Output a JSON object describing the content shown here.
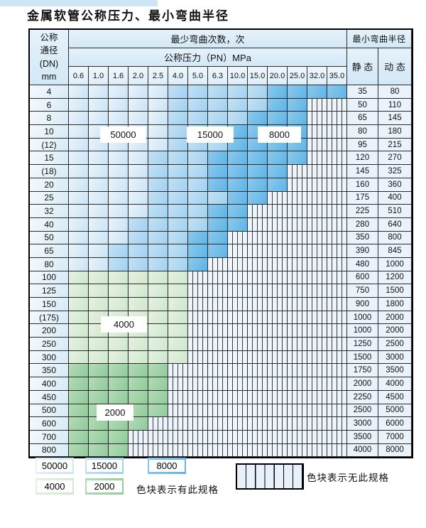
{
  "page": {
    "title": "金属软管公称压力、最小弯曲半径"
  },
  "table": {
    "header": {
      "dn_lines": [
        "公称",
        "通径",
        "(DN)",
        "mm"
      ],
      "cycles_label": "最少弯曲次数，次",
      "pressure_label": "公称压力（PN）MPa",
      "pressures": [
        "0.6",
        "1.0",
        "1.6",
        "2.0",
        "2.5",
        "4.0",
        "5.0",
        "6.3",
        "10.0",
        "15.0",
        "20.0",
        "25.0",
        "32.0",
        "35.0"
      ],
      "radius_label": "最小弯曲半径",
      "static_label": "静 态",
      "dynamic_label": "动 态"
    },
    "zone_legend": {
      "b1": "50000 cycles",
      "b2": "15000 cycles",
      "b3": "8000 cycles",
      "g1": "4000 cycles",
      "g2": "2000 cycles",
      "x": "no specification"
    },
    "overlay_labels": [
      {
        "text": "50000"
      },
      {
        "text": "15000"
      },
      {
        "text": "8000"
      },
      {
        "text": "4000"
      },
      {
        "text": "2000"
      }
    ],
    "rows": [
      {
        "dn": "4",
        "static": "35",
        "dynamic": "80",
        "zones": [
          "b1",
          "b1",
          "b1",
          "b1",
          "b1",
          "b2",
          "b2",
          "b2",
          "b2",
          "b2",
          "b3",
          "b3",
          "b3",
          "b3"
        ]
      },
      {
        "dn": "6",
        "static": "50",
        "dynamic": "110",
        "zones": [
          "b1",
          "b1",
          "b1",
          "b1",
          "b1",
          "b2",
          "b2",
          "b2",
          "b2",
          "b2",
          "b3",
          "b3",
          "x",
          "x"
        ]
      },
      {
        "dn": "8",
        "static": "65",
        "dynamic": "145",
        "zones": [
          "b1",
          "b1",
          "b1",
          "b1",
          "b1",
          "b2",
          "b2",
          "b2",
          "b2",
          "b3",
          "b3",
          "b3",
          "x",
          "x"
        ]
      },
      {
        "dn": "10",
        "static": "80",
        "dynamic": "180",
        "zones": [
          "b1",
          "b1",
          "b1",
          "b1",
          "b1",
          "b2",
          "b2",
          "b2",
          "b3",
          "b3",
          "b3",
          "b3",
          "x",
          "x"
        ]
      },
      {
        "dn": "(12)",
        "static": "95",
        "dynamic": "215",
        "zones": [
          "b1",
          "b1",
          "b1",
          "b1",
          "b1",
          "b2",
          "b2",
          "b2",
          "b3",
          "b3",
          "b3",
          "b3",
          "x",
          "x"
        ]
      },
      {
        "dn": "15",
        "static": "120",
        "dynamic": "270",
        "zones": [
          "b1",
          "b1",
          "b1",
          "b1",
          "b2",
          "b2",
          "b2",
          "b3",
          "b3",
          "b3",
          "b3",
          "b3",
          "x",
          "x"
        ]
      },
      {
        "dn": "(18)",
        "static": "145",
        "dynamic": "325",
        "zones": [
          "b1",
          "b1",
          "b1",
          "b1",
          "b2",
          "b2",
          "b2",
          "b3",
          "b3",
          "b3",
          "b3",
          "x",
          "x",
          "x"
        ]
      },
      {
        "dn": "20",
        "static": "160",
        "dynamic": "360",
        "zones": [
          "b1",
          "b1",
          "b1",
          "b1",
          "b2",
          "b2",
          "b2",
          "b3",
          "b3",
          "b3",
          "b3",
          "x",
          "x",
          "x"
        ]
      },
      {
        "dn": "25",
        "static": "175",
        "dynamic": "400",
        "zones": [
          "b1",
          "b1",
          "b1",
          "b1",
          "b2",
          "b2",
          "b2",
          "b2",
          "b3",
          "b3",
          "x",
          "x",
          "x",
          "x"
        ]
      },
      {
        "dn": "32",
        "static": "225",
        "dynamic": "510",
        "zones": [
          "b1",
          "b1",
          "b1",
          "b1",
          "b2",
          "b2",
          "b2",
          "b3",
          "b3",
          "x",
          "x",
          "x",
          "x",
          "x"
        ]
      },
      {
        "dn": "40",
        "static": "280",
        "dynamic": "640",
        "zones": [
          "b1",
          "b1",
          "b1",
          "b2",
          "b2",
          "b2",
          "b2",
          "b3",
          "b3",
          "x",
          "x",
          "x",
          "x",
          "x"
        ]
      },
      {
        "dn": "50",
        "static": "350",
        "dynamic": "800",
        "zones": [
          "b1",
          "b1",
          "b1",
          "b2",
          "b2",
          "b2",
          "b3",
          "b3",
          "x",
          "x",
          "x",
          "x",
          "x",
          "x"
        ]
      },
      {
        "dn": "65",
        "static": "390",
        "dynamic": "845",
        "zones": [
          "b1",
          "b1",
          "b2",
          "b2",
          "b2",
          "b2",
          "b3",
          "b3",
          "x",
          "x",
          "x",
          "x",
          "x",
          "x"
        ]
      },
      {
        "dn": "80",
        "static": "480",
        "dynamic": "1000",
        "zones": [
          "b1",
          "b1",
          "b2",
          "b2",
          "b2",
          "b2",
          "b3",
          "x",
          "x",
          "x",
          "x",
          "x",
          "x",
          "x"
        ]
      },
      {
        "dn": "100",
        "static": "600",
        "dynamic": "1200",
        "zones": [
          "g1",
          "g1",
          "g1",
          "g1",
          "g1",
          "g1",
          "x",
          "x",
          "x",
          "x",
          "x",
          "x",
          "x",
          "x"
        ]
      },
      {
        "dn": "125",
        "static": "750",
        "dynamic": "1500",
        "zones": [
          "g1",
          "g1",
          "g1",
          "g1",
          "g1",
          "g1",
          "x",
          "x",
          "x",
          "x",
          "x",
          "x",
          "x",
          "x"
        ]
      },
      {
        "dn": "150",
        "static": "900",
        "dynamic": "1800",
        "zones": [
          "g1",
          "g1",
          "g1",
          "g1",
          "g1",
          "g1",
          "x",
          "x",
          "x",
          "x",
          "x",
          "x",
          "x",
          "x"
        ]
      },
      {
        "dn": "(175)",
        "static": "1000",
        "dynamic": "2000",
        "zones": [
          "g1",
          "g1",
          "g1",
          "g1",
          "g1",
          "g1",
          "x",
          "x",
          "x",
          "x",
          "x",
          "x",
          "x",
          "x"
        ]
      },
      {
        "dn": "200",
        "static": "1000",
        "dynamic": "2000",
        "zones": [
          "g1",
          "g1",
          "g1",
          "g1",
          "g1",
          "g1",
          "x",
          "x",
          "x",
          "x",
          "x",
          "x",
          "x",
          "x"
        ]
      },
      {
        "dn": "250",
        "static": "1250",
        "dynamic": "2500",
        "zones": [
          "g1",
          "g1",
          "g1",
          "g1",
          "g1",
          "g1",
          "x",
          "x",
          "x",
          "x",
          "x",
          "x",
          "x",
          "x"
        ]
      },
      {
        "dn": "300",
        "static": "1500",
        "dynamic": "3000",
        "zones": [
          "g1",
          "g1",
          "g1",
          "g1",
          "g1",
          "g1",
          "x",
          "x",
          "x",
          "x",
          "x",
          "x",
          "x",
          "x"
        ]
      },
      {
        "dn": "350",
        "static": "1750",
        "dynamic": "3500",
        "zones": [
          "g2",
          "g2",
          "g2",
          "g2",
          "g2",
          "x",
          "x",
          "x",
          "x",
          "x",
          "x",
          "x",
          "x",
          "x"
        ]
      },
      {
        "dn": "400",
        "static": "2000",
        "dynamic": "4000",
        "zones": [
          "g2",
          "g2",
          "g2",
          "g2",
          "g2",
          "x",
          "x",
          "x",
          "x",
          "x",
          "x",
          "x",
          "x",
          "x"
        ]
      },
      {
        "dn": "450",
        "static": "2250",
        "dynamic": "4500",
        "zones": [
          "g2",
          "g2",
          "g2",
          "g2",
          "g2",
          "x",
          "x",
          "x",
          "x",
          "x",
          "x",
          "x",
          "x",
          "x"
        ]
      },
      {
        "dn": "500",
        "static": "2500",
        "dynamic": "5000",
        "zones": [
          "g2",
          "g2",
          "g2",
          "g2",
          "g2",
          "x",
          "x",
          "x",
          "x",
          "x",
          "x",
          "x",
          "x",
          "x"
        ]
      },
      {
        "dn": "600",
        "static": "3000",
        "dynamic": "6000",
        "zones": [
          "g2",
          "g2",
          "g2",
          "g2",
          "x",
          "x",
          "x",
          "x",
          "x",
          "x",
          "x",
          "x",
          "x",
          "x"
        ]
      },
      {
        "dn": "700",
        "static": "3500",
        "dynamic": "7000",
        "zones": [
          "g2",
          "g2",
          "g2",
          "x",
          "x",
          "x",
          "x",
          "x",
          "x",
          "x",
          "x",
          "x",
          "x",
          "x"
        ]
      },
      {
        "dn": "800",
        "static": "4000",
        "dynamic": "8000",
        "zones": [
          "g2",
          "g2",
          "g2",
          "x",
          "x",
          "x",
          "x",
          "x",
          "x",
          "x",
          "x",
          "x",
          "x",
          "x"
        ]
      }
    ]
  },
  "legend": {
    "row1": [
      "50000",
      "15000",
      "8000"
    ],
    "row2": [
      "4000",
      "2000"
    ],
    "has_spec_text": "色块表示有此规格",
    "no_spec_text": "色块表示无此规格"
  },
  "colors": {
    "zone_50000": "#d7eaf8",
    "zone_15000": "#a9d6f2",
    "zone_8000": "#6fbfea",
    "zone_4000": "#dcedd8",
    "zone_2000": "#a0d3a8",
    "no_spec_bg": "#eef4fb",
    "stripe_line": "#3c3c3c",
    "grid_line": "#2b2b2b",
    "header_bg": "#dbecf8",
    "title_strip": "#cde6f5"
  }
}
